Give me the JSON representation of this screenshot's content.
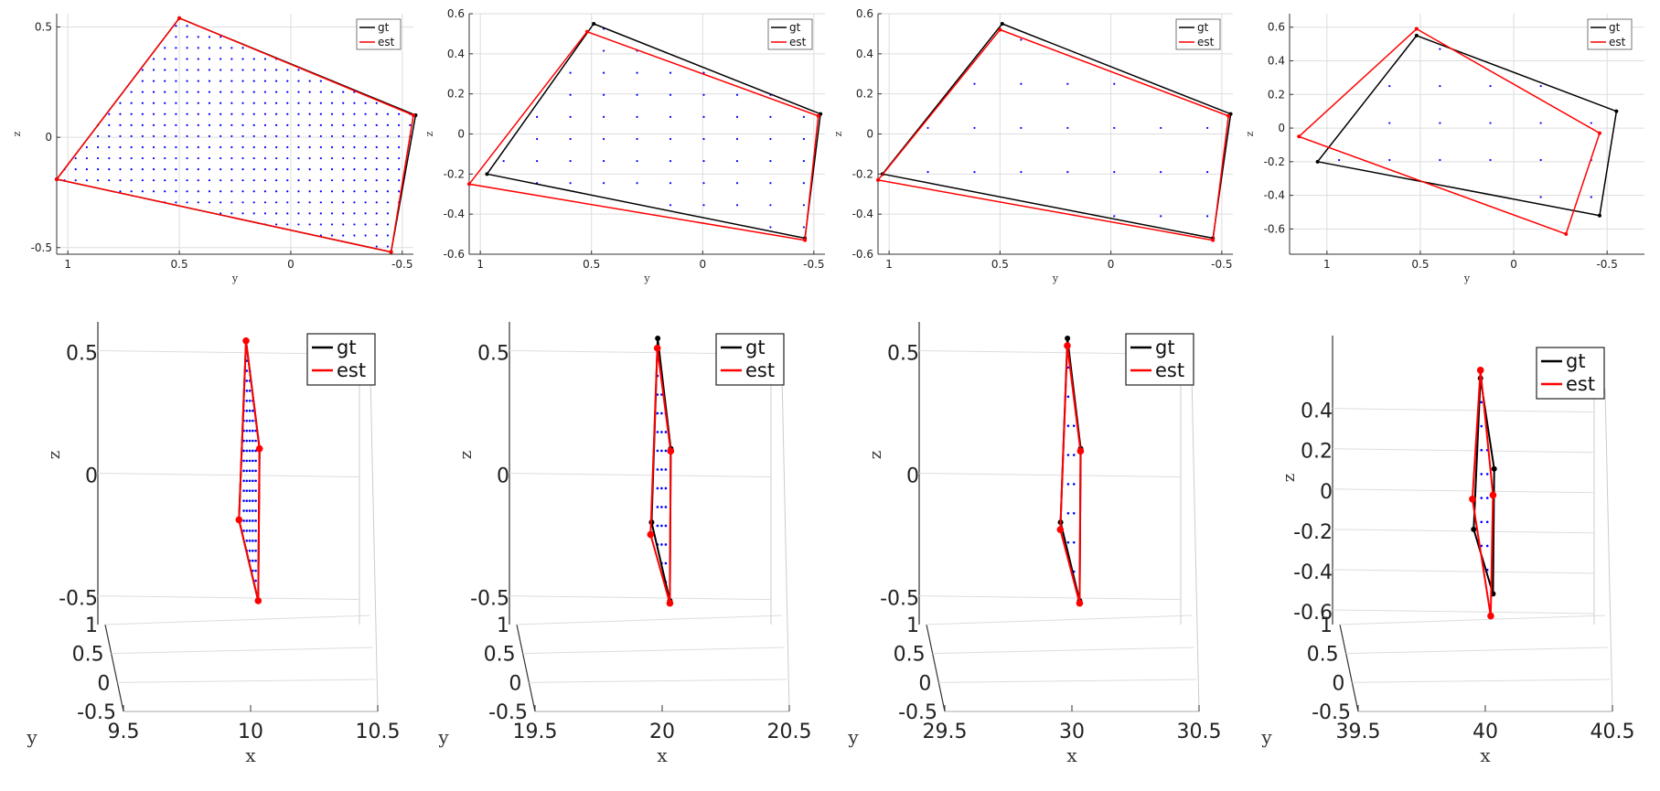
{
  "figure": {
    "legend_gt": "gt",
    "legend_est": "est",
    "colors": {
      "gt": "#000000",
      "est": "#ff0000",
      "points": "#0000ff",
      "grid": "#dddddd",
      "axis": "#333333",
      "box": "#cccccc"
    }
  },
  "chart_data": [
    {
      "type": "line",
      "view": "y-z projection",
      "panel": "top-1",
      "xlabel": "y",
      "ylabel": "z",
      "xlim": [
        1.05,
        -0.55
      ],
      "ylim": [
        -0.53,
        0.56
      ],
      "xticks": [
        1,
        0.5,
        0,
        -0.5
      ],
      "xtick_labels": [
        "1",
        "0.5",
        "0",
        "-0.5"
      ],
      "yticks": [
        -0.5,
        0,
        0.5
      ],
      "ytick_labels": [
        "-0.5",
        "0",
        "0.5"
      ],
      "series": [
        {
          "name": "gt",
          "points": [
            [
              0.5,
              0.54
            ],
            [
              -0.56,
              0.1
            ],
            [
              -0.45,
              -0.52
            ],
            [
              1.05,
              -0.19
            ],
            [
              0.5,
              0.54
            ]
          ]
        },
        {
          "name": "est",
          "points": [
            [
              0.5,
              0.54
            ],
            [
              -0.55,
              0.1
            ],
            [
              -0.45,
              -0.52
            ],
            [
              1.05,
              -0.19
            ],
            [
              0.5,
              0.54
            ]
          ]
        }
      ],
      "grid_spacing": [
        0.05,
        0.05
      ],
      "legend": "top-right"
    },
    {
      "type": "line",
      "view": "y-z projection",
      "panel": "top-2",
      "xlabel": "y",
      "ylabel": "z",
      "xlim": [
        1.05,
        -0.55
      ],
      "ylim": [
        -0.6,
        0.6
      ],
      "xticks": [
        1,
        0.5,
        0,
        -0.5
      ],
      "xtick_labels": [
        "1",
        "0.5",
        "0",
        "-0.5"
      ],
      "yticks": [
        -0.6,
        -0.4,
        -0.2,
        0,
        0.2,
        0.4,
        0.6
      ],
      "ytick_labels": [
        "-0.6",
        "-0.4",
        "-0.2",
        "0",
        "0.2",
        "0.4",
        "0.6"
      ],
      "series": [
        {
          "name": "gt",
          "points": [
            [
              0.49,
              0.55
            ],
            [
              -0.53,
              0.1
            ],
            [
              -0.46,
              -0.52
            ],
            [
              0.97,
              -0.2
            ],
            [
              0.49,
              0.55
            ]
          ]
        },
        {
          "name": "est",
          "points": [
            [
              0.52,
              0.51
            ],
            [
              -0.52,
              0.09
            ],
            [
              -0.46,
              -0.53
            ],
            [
              1.05,
              -0.25
            ],
            [
              0.52,
              0.51
            ]
          ]
        }
      ],
      "grid_spacing": [
        0.15,
        0.11
      ],
      "legend": "top-right"
    },
    {
      "type": "line",
      "view": "y-z projection",
      "panel": "top-3",
      "xlabel": "y",
      "ylabel": "z",
      "xlim": [
        1.05,
        -0.55
      ],
      "ylim": [
        -0.6,
        0.6
      ],
      "xticks": [
        1,
        0.5,
        0,
        -0.5
      ],
      "xtick_labels": [
        "1",
        "0.5",
        "0",
        "-0.5"
      ],
      "yticks": [
        -0.6,
        -0.4,
        -0.2,
        0,
        0.2,
        0.4,
        0.6
      ],
      "ytick_labels": [
        "-0.6",
        "-0.4",
        "-0.2",
        "0",
        "0.2",
        "0.4",
        "0.6"
      ],
      "series": [
        {
          "name": "gt",
          "points": [
            [
              0.49,
              0.55
            ],
            [
              -0.54,
              0.1
            ],
            [
              -0.46,
              -0.52
            ],
            [
              1.03,
              -0.2
            ],
            [
              0.49,
              0.55
            ]
          ]
        },
        {
          "name": "est",
          "points": [
            [
              0.5,
              0.52
            ],
            [
              -0.53,
              0.09
            ],
            [
              -0.46,
              -0.53
            ],
            [
              1.05,
              -0.23
            ],
            [
              0.5,
              0.52
            ]
          ]
        }
      ],
      "grid_spacing": [
        0.21,
        0.22
      ],
      "legend": "top-right"
    },
    {
      "type": "line",
      "view": "y-z projection",
      "panel": "top-4",
      "xlabel": "y",
      "ylabel": "z",
      "xlim": [
        1.2,
        -0.7
      ],
      "ylim": [
        -0.75,
        0.68
      ],
      "xticks": [
        1,
        0.5,
        0,
        -0.5
      ],
      "xtick_labels": [
        "1",
        "0.5",
        "0",
        "-0.5"
      ],
      "yticks": [
        -0.6,
        -0.4,
        -0.2,
        0,
        0.2,
        0.4,
        0.6
      ],
      "ytick_labels": [
        "-0.6",
        "-0.4",
        "-0.2",
        "0",
        "0.2",
        "0.4",
        "0.6"
      ],
      "series": [
        {
          "name": "gt",
          "points": [
            [
              0.52,
              0.55
            ],
            [
              -0.55,
              0.1
            ],
            [
              -0.46,
              -0.52
            ],
            [
              1.05,
              -0.2
            ],
            [
              0.52,
              0.55
            ]
          ]
        },
        {
          "name": "est",
          "points": [
            [
              0.52,
              0.59
            ],
            [
              -0.46,
              -0.03
            ],
            [
              -0.28,
              -0.63
            ],
            [
              1.15,
              -0.05
            ],
            [
              0.52,
              0.59
            ]
          ]
        }
      ],
      "grid_spacing": [
        0.27,
        0.22
      ],
      "legend": "top-right"
    },
    {
      "type": "line3d",
      "panel": "bottom-1",
      "xlabel": "x",
      "ylabel": "y",
      "zlabel": "z",
      "xlim": [
        9.5,
        10.5
      ],
      "xticks": [
        9.5,
        10,
        10.5
      ],
      "xtick_labels": [
        "9.5",
        "10",
        "10.5"
      ],
      "yticks": [
        -0.5,
        0,
        0.5,
        1
      ],
      "ytick_labels": [
        "-0.5",
        "0",
        "0.5",
        "1"
      ],
      "zlim": [
        -0.55,
        0.55
      ],
      "zticks": [
        -0.5,
        0,
        0.5
      ],
      "ztick_labels": [
        "-0.5",
        "0",
        "0.5"
      ],
      "series": [
        {
          "name": "gt",
          "points": [
            [
              10,
              0.5,
              0.54
            ],
            [
              10,
              -0.56,
              0.1
            ],
            [
              10,
              -0.45,
              -0.52
            ],
            [
              10,
              1.05,
              -0.19
            ]
          ]
        },
        {
          "name": "est",
          "points": [
            [
              10,
              0.5,
              0.54
            ],
            [
              10,
              -0.55,
              0.1
            ],
            [
              10,
              -0.45,
              -0.52
            ],
            [
              10,
              1.05,
              -0.19
            ]
          ]
        }
      ],
      "legend": "top-right"
    },
    {
      "type": "line3d",
      "panel": "bottom-2",
      "xlabel": "x",
      "ylabel": "y",
      "zlabel": "z",
      "xlim": [
        19.5,
        20.5
      ],
      "xticks": [
        19.5,
        20,
        20.5
      ],
      "xtick_labels": [
        "19.5",
        "20",
        "20.5"
      ],
      "yticks": [
        -0.5,
        0,
        0.5,
        1
      ],
      "ytick_labels": [
        "-0.5",
        "0",
        "0.5",
        "1"
      ],
      "zlim": [
        -0.55,
        0.55
      ],
      "zticks": [
        -0.5,
        0,
        0.5
      ],
      "ztick_labels": [
        "-0.5",
        "0",
        "0.5"
      ],
      "series": [
        {
          "name": "gt",
          "points": [
            [
              20,
              0.49,
              0.55
            ],
            [
              20,
              -0.53,
              0.1
            ],
            [
              20,
              -0.46,
              -0.52
            ],
            [
              20,
              0.97,
              -0.2
            ]
          ]
        },
        {
          "name": "est",
          "points": [
            [
              20,
              0.52,
              0.51
            ],
            [
              20,
              -0.52,
              0.09
            ],
            [
              20,
              -0.46,
              -0.53
            ],
            [
              20,
              1.05,
              -0.25
            ]
          ]
        }
      ],
      "legend": "top-right"
    },
    {
      "type": "line3d",
      "panel": "bottom-3",
      "xlabel": "x",
      "ylabel": "y",
      "zlabel": "z",
      "xlim": [
        29.5,
        30.5
      ],
      "xticks": [
        29.5,
        30,
        30.5
      ],
      "xtick_labels": [
        "29.5",
        "30",
        "30.5"
      ],
      "yticks": [
        -0.5,
        0,
        0.5,
        1
      ],
      "ytick_labels": [
        "-0.5",
        "0",
        "0.5",
        "1"
      ],
      "zlim": [
        -0.55,
        0.55
      ],
      "zticks": [
        -0.5,
        0,
        0.5
      ],
      "ztick_labels": [
        "-0.5",
        "0",
        "0.5"
      ],
      "series": [
        {
          "name": "gt",
          "points": [
            [
              30,
              0.49,
              0.55
            ],
            [
              30,
              -0.54,
              0.1
            ],
            [
              30,
              -0.46,
              -0.52
            ],
            [
              30,
              1.03,
              -0.2
            ]
          ]
        },
        {
          "name": "est",
          "points": [
            [
              30,
              0.5,
              0.52
            ],
            [
              30,
              -0.53,
              0.09
            ],
            [
              30,
              -0.46,
              -0.53
            ],
            [
              30,
              1.05,
              -0.23
            ]
          ]
        }
      ],
      "legend": "top-right"
    },
    {
      "type": "line3d",
      "panel": "bottom-4",
      "xlabel": "x",
      "ylabel": "y",
      "zlabel": "z",
      "xlim": [
        39.5,
        40.5
      ],
      "xticks": [
        39.5,
        40,
        40.5
      ],
      "xtick_labels": [
        "39.5",
        "40",
        "40.5"
      ],
      "yticks": [
        -0.5,
        0,
        0.5,
        1
      ],
      "ytick_labels": [
        "-0.5",
        "0",
        "0.5",
        "1"
      ],
      "zlim": [
        -0.75,
        0.68
      ],
      "zticks": [
        -0.6,
        -0.4,
        -0.2,
        0,
        0.2,
        0.4
      ],
      "ztick_labels": [
        "-0.6",
        "-0.4",
        "-0.2",
        "0",
        "0.2",
        "0.4"
      ],
      "series": [
        {
          "name": "gt",
          "points": [
            [
              40,
              0.52,
              0.55
            ],
            [
              40,
              -0.55,
              0.1
            ],
            [
              40,
              -0.46,
              -0.52
            ],
            [
              40,
              1.05,
              -0.2
            ]
          ]
        },
        {
          "name": "est",
          "points": [
            [
              40,
              0.52,
              0.59
            ],
            [
              40,
              -0.46,
              -0.03
            ],
            [
              40,
              -0.28,
              -0.63
            ],
            [
              40,
              1.15,
              -0.05
            ]
          ]
        }
      ],
      "legend": "top-right"
    }
  ]
}
